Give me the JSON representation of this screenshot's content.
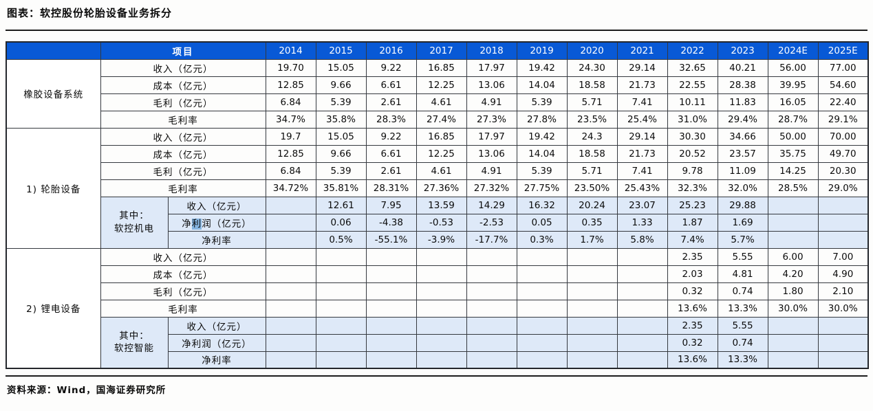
{
  "title": "图表：软控股份轮胎设备业务拆分",
  "footer": "资料来源：Wind，国海证券研究所",
  "colors": {
    "header_bg": "#0859d6",
    "header_text": "#ffffff",
    "subrow_bg": "#dee9f8",
    "highlight_bg": "#85b4e0",
    "border": "#34383e"
  },
  "table": {
    "corner_label": "",
    "item_header": "项目",
    "years": [
      "2014",
      "2015",
      "2016",
      "2017",
      "2018",
      "2019",
      "2020",
      "2021",
      "2022",
      "2023",
      "2024E",
      "2025E"
    ],
    "sections": [
      {
        "name": "橡胶设备系统",
        "rows": [
          {
            "label": "收入（亿元）",
            "values": [
              "19.70",
              "15.05",
              "9.22",
              "16.85",
              "17.97",
              "19.42",
              "24.30",
              "29.14",
              "32.65",
              "40.21",
              "56.00",
              "77.00"
            ]
          },
          {
            "label": "成本（亿元）",
            "values": [
              "12.85",
              "9.66",
              "6.61",
              "12.25",
              "13.06",
              "14.04",
              "18.58",
              "21.73",
              "22.55",
              "28.38",
              "39.95",
              "54.60"
            ]
          },
          {
            "label": "毛利（亿元）",
            "values": [
              "6.84",
              "5.39",
              "2.61",
              "4.61",
              "4.91",
              "5.39",
              "5.71",
              "7.41",
              "10.11",
              "11.83",
              "16.05",
              "22.40"
            ]
          },
          {
            "label": "毛利率",
            "values": [
              "34.7%",
              "35.8%",
              "28.3%",
              "27.4%",
              "27.3%",
              "27.8%",
              "23.5%",
              "25.4%",
              "31.0%",
              "29.4%",
              "28.7%",
              "29.1%"
            ]
          }
        ],
        "sub": null
      },
      {
        "name": "1) 轮胎设备",
        "rows": [
          {
            "label": "收入（亿元）",
            "values": [
              "19.7",
              "15.05",
              "9.22",
              "16.85",
              "17.97",
              "19.42",
              "24.3",
              "29.14",
              "30.30",
              "34.66",
              "50.00",
              "70.00"
            ]
          },
          {
            "label": "成本（亿元）",
            "values": [
              "12.85",
              "9.66",
              "6.61",
              "12.25",
              "13.06",
              "14.04",
              "18.58",
              "21.73",
              "20.52",
              "23.57",
              "35.75",
              "49.70"
            ]
          },
          {
            "label": "毛利（亿元）",
            "values": [
              "6.84",
              "5.39",
              "2.61",
              "4.61",
              "4.91",
              "5.39",
              "5.71",
              "7.41",
              "9.78",
              "11.09",
              "14.25",
              "20.30"
            ]
          },
          {
            "label": "毛利率",
            "values": [
              "34.72%",
              "35.81%",
              "28.31%",
              "27.36%",
              "27.32%",
              "27.75%",
              "23.50%",
              "25.43%",
              "32.3%",
              "32.0%",
              "28.5%",
              "29.0%"
            ]
          }
        ],
        "sub": {
          "name_lines": [
            "其中：",
            "软控机电"
          ],
          "rows": [
            {
              "label": "收入（亿元）",
              "values": [
                "",
                "12.61",
                "7.95",
                "13.59",
                "14.29",
                "16.32",
                "20.24",
                "23.07",
                "25.23",
                "29.88",
                "",
                ""
              ]
            },
            {
              "label": "净利润（亿元）",
              "label_parts": {
                "pre": "净",
                "highlight": "利",
                "post": "润（亿元）"
              },
              "values": [
                "",
                "0.06",
                "-4.38",
                "-0.53",
                "-2.53",
                "0.05",
                "0.35",
                "1.33",
                "1.87",
                "1.69",
                "",
                ""
              ]
            },
            {
              "label": "净利率",
              "values": [
                "",
                "0.5%",
                "-55.1%",
                "-3.9%",
                "-17.7%",
                "0.3%",
                "1.7%",
                "5.8%",
                "7.4%",
                "5.7%",
                "",
                ""
              ]
            }
          ]
        }
      },
      {
        "name": "2) 锂电设备",
        "rows": [
          {
            "label": "收入（亿元）",
            "values": [
              "",
              "",
              "",
              "",
              "",
              "",
              "",
              "",
              "2.35",
              "5.55",
              "6.00",
              "7.00"
            ]
          },
          {
            "label": "成本（亿元）",
            "values": [
              "",
              "",
              "",
              "",
              "",
              "",
              "",
              "",
              "2.03",
              "4.81",
              "4.20",
              "4.90"
            ]
          },
          {
            "label": "毛利（亿元）",
            "values": [
              "",
              "",
              "",
              "",
              "",
              "",
              "",
              "",
              "0.32",
              "0.74",
              "1.80",
              "2.10"
            ]
          },
          {
            "label": "毛利率",
            "values": [
              "",
              "",
              "",
              "",
              "",
              "",
              "",
              "",
              "13.6%",
              "13.3%",
              "30.0%",
              "30.0%"
            ]
          }
        ],
        "sub": {
          "name_lines": [
            "其中：",
            "软控智能"
          ],
          "rows": [
            {
              "label": "收入（亿元）",
              "values": [
                "",
                "",
                "",
                "",
                "",
                "",
                "",
                "",
                "2.35",
                "5.55",
                "",
                ""
              ]
            },
            {
              "label": "净利润（亿元）",
              "values": [
                "",
                "",
                "",
                "",
                "",
                "",
                "",
                "",
                "0.32",
                "0.74",
                "",
                ""
              ]
            },
            {
              "label": "净利率",
              "values": [
                "",
                "",
                "",
                "",
                "",
                "",
                "",
                "",
                "13.6%",
                "13.3%",
                "",
                ""
              ]
            }
          ]
        }
      }
    ]
  }
}
